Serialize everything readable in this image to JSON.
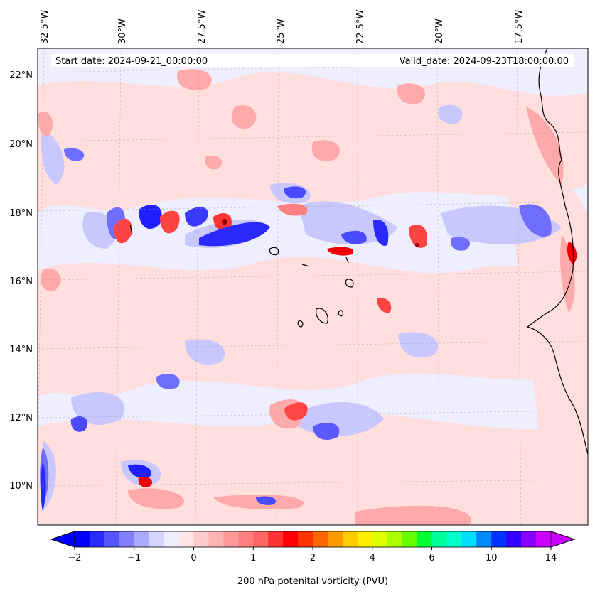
{
  "header": {
    "start_date": "Start date: 2024-09-21_00:00:00",
    "valid_date": "Valid_date: 2024-09-23T18:00:00.00"
  },
  "axes": {
    "lon_labels": [
      "32.5°W",
      "30°W",
      "27.5°W",
      "25°W",
      "22.5°W",
      "20°W",
      "17.5°W"
    ],
    "lat_labels": [
      "22°N",
      "20°N",
      "18°N",
      "16°N",
      "14°N",
      "12°N",
      "10°N"
    ]
  },
  "colorbar": {
    "label": "200 hPa potenital vorticity (PVU)",
    "ticks": [
      "−2",
      "−1",
      "0",
      "1",
      "2",
      "4",
      "6",
      "10",
      "14"
    ],
    "colors": [
      "#0000ff",
      "#2b2bff",
      "#5555ff",
      "#8080ff",
      "#aaaaff",
      "#d4d4ff",
      "#eeeeff",
      "#ffe6e6",
      "#ffcccc",
      "#ffb3b3",
      "#ff9999",
      "#ff8080",
      "#ff6666",
      "#ff3333",
      "#ff0000",
      "#ff3300",
      "#ff6600",
      "#ff9900",
      "#ffcc00",
      "#ffee00",
      "#ddff00",
      "#aaff00",
      "#66ff00",
      "#00ff33",
      "#00ff99",
      "#00ffcc",
      "#00ddff",
      "#0088ff",
      "#0033ff",
      "#3300ff",
      "#8800ff",
      "#cc00ff"
    ],
    "extend_min_color": "#0000ff",
    "extend_max_color": "#cc00ff"
  },
  "field_colors": {
    "strong_neg": "#1f1fff",
    "mid_neg": "#6f6fff",
    "weak_neg": "#b4b4ff",
    "background": "#eeeeff",
    "weak_pos": "#ffdede",
    "mid_pos": "#ffaaaa",
    "strong_pos": "#ff4444",
    "very_strong_pos": "#ee0000"
  }
}
